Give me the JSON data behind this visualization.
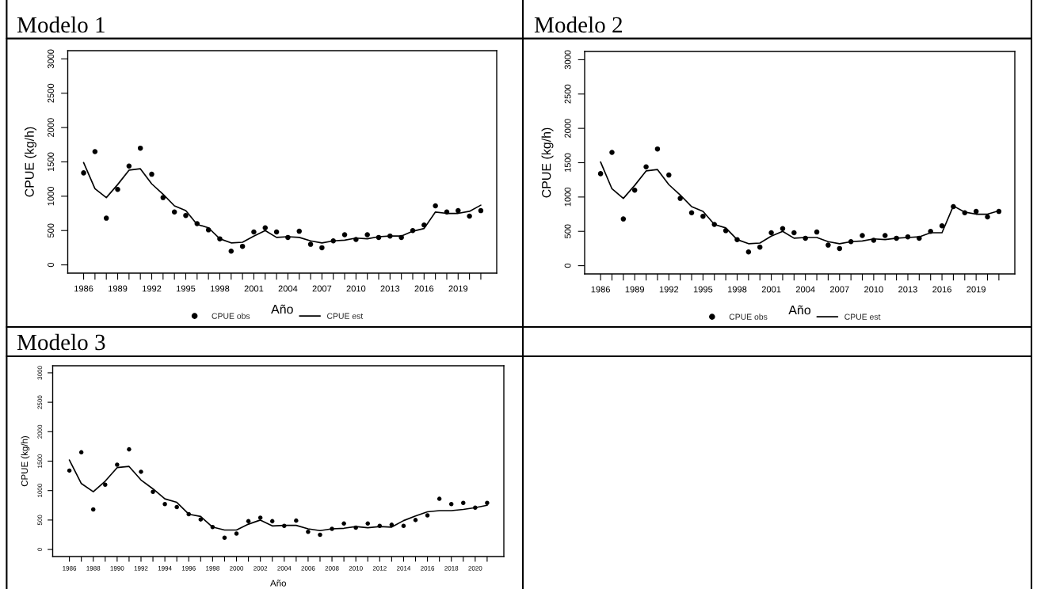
{
  "chart_data": [
    {
      "type": "line",
      "title": "Modelo 1",
      "xlabel": "Año",
      "ylabel": "CPUE (kg/h)",
      "legend": "bottom",
      "x": [
        1986,
        1987,
        1988,
        1989,
        1990,
        1991,
        1992,
        1993,
        1994,
        1995,
        1996,
        1997,
        1998,
        1999,
        2000,
        2001,
        2002,
        2003,
        2004,
        2005,
        2006,
        2007,
        2008,
        2009,
        2010,
        2011,
        2012,
        2013,
        2014,
        2015,
        2016,
        2017,
        2018,
        2019,
        2020,
        2021
      ],
      "xlim": [
        1984.6,
        2022.4
      ],
      "ylim": [
        -120,
        3120
      ],
      "yticks": [
        0,
        500,
        1000,
        1500,
        2000,
        2500,
        3000
      ],
      "xticks": [
        1986,
        {
          "value": 1987,
          "label": null
        },
        {
          "value": 1988,
          "label": null
        },
        1989,
        {
          "value": 1990,
          "label": null
        },
        {
          "value": 1991,
          "label": null
        },
        1992,
        {
          "value": 1993,
          "label": null
        },
        {
          "value": 1994,
          "label": null
        },
        1995,
        {
          "value": 1996,
          "label": null
        },
        {
          "value": 1997,
          "label": null
        },
        1998,
        {
          "value": 1999,
          "label": null
        },
        {
          "value": 2000,
          "label": null
        },
        2001,
        {
          "value": 2002,
          "label": null
        },
        {
          "value": 2003,
          "label": null
        },
        2004,
        {
          "value": 2005,
          "label": null
        },
        {
          "value": 2006,
          "label": null
        },
        2007,
        {
          "value": 2008,
          "label": null
        },
        {
          "value": 2009,
          "label": null
        },
        2010,
        {
          "value": 2011,
          "label": null
        },
        {
          "value": 2012,
          "label": null
        },
        2013,
        {
          "value": 2014,
          "label": null
        },
        {
          "value": 2015,
          "label": null
        },
        2016,
        {
          "value": 2017,
          "label": null
        },
        {
          "value": 2018,
          "label": null
        },
        2019,
        {
          "value": 2020,
          "label": null
        },
        {
          "value": 2021,
          "label": null
        }
      ],
      "series": [
        {
          "name": "CPUE obs",
          "type": "scatter",
          "marker": "circle",
          "color": "#000000",
          "values": [
            1340,
            1650,
            680,
            1100,
            1440,
            1700,
            1320,
            980,
            770,
            720,
            600,
            510,
            380,
            200,
            270,
            480,
            540,
            480,
            400,
            490,
            300,
            250,
            350,
            440,
            370,
            440,
            400,
            420,
            400,
            500,
            580,
            860,
            770,
            790,
            710,
            790
          ]
        },
        {
          "name": "CPUE est",
          "line_style": "solid",
          "color": "#000000",
          "values": [
            1490,
            1110,
            980,
            1170,
            1380,
            1400,
            1180,
            1030,
            860,
            790,
            590,
            540,
            380,
            320,
            330,
            420,
            500,
            400,
            410,
            400,
            350,
            320,
            350,
            360,
            390,
            380,
            410,
            420,
            420,
            490,
            530,
            770,
            750,
            750,
            780,
            870
          ]
        }
      ]
    },
    {
      "type": "line",
      "title": "Modelo 2",
      "xlabel": "Año",
      "ylabel": "CPUE (kg/h)",
      "legend": "bottom",
      "x": [
        1986,
        1987,
        1988,
        1989,
        1990,
        1991,
        1992,
        1993,
        1994,
        1995,
        1996,
        1997,
        1998,
        1999,
        2000,
        2001,
        2002,
        2003,
        2004,
        2005,
        2006,
        2007,
        2008,
        2009,
        2010,
        2011,
        2012,
        2013,
        2014,
        2015,
        2016,
        2017,
        2018,
        2019,
        2020,
        2021
      ],
      "xlim": [
        1984.6,
        2022.4
      ],
      "ylim": [
        -120,
        3120
      ],
      "yticks": [
        0,
        500,
        1000,
        1500,
        2000,
        2500,
        3000
      ],
      "xticks": [
        1986,
        {
          "value": 1987,
          "label": null
        },
        {
          "value": 1988,
          "label": null
        },
        1989,
        {
          "value": 1990,
          "label": null
        },
        {
          "value": 1991,
          "label": null
        },
        1992,
        {
          "value": 1993,
          "label": null
        },
        {
          "value": 1994,
          "label": null
        },
        1995,
        {
          "value": 1996,
          "label": null
        },
        {
          "value": 1997,
          "label": null
        },
        1998,
        {
          "value": 1999,
          "label": null
        },
        {
          "value": 2000,
          "label": null
        },
        2001,
        {
          "value": 2002,
          "label": null
        },
        {
          "value": 2003,
          "label": null
        },
        2004,
        {
          "value": 2005,
          "label": null
        },
        {
          "value": 2006,
          "label": null
        },
        2007,
        {
          "value": 2008,
          "label": null
        },
        {
          "value": 2009,
          "label": null
        },
        2010,
        {
          "value": 2011,
          "label": null
        },
        {
          "value": 2012,
          "label": null
        },
        2013,
        {
          "value": 2014,
          "label": null
        },
        {
          "value": 2015,
          "label": null
        },
        2016,
        {
          "value": 2017,
          "label": null
        },
        {
          "value": 2018,
          "label": null
        },
        2019,
        {
          "value": 2020,
          "label": null
        },
        {
          "value": 2021,
          "label": null
        }
      ],
      "series": [
        {
          "name": "CPUE obs",
          "type": "scatter",
          "marker": "circle",
          "color": "#000000",
          "values": [
            1340,
            1650,
            680,
            1100,
            1440,
            1700,
            1320,
            980,
            770,
            720,
            600,
            510,
            380,
            200,
            270,
            480,
            540,
            480,
            400,
            490,
            300,
            250,
            350,
            440,
            370,
            440,
            400,
            420,
            400,
            500,
            580,
            860,
            770,
            790,
            710,
            790
          ]
        },
        {
          "name": "CPUE est",
          "line_style": "solid",
          "color": "#000000",
          "values": [
            1510,
            1120,
            980,
            1170,
            1380,
            1400,
            1180,
            1030,
            860,
            790,
            600,
            550,
            380,
            320,
            330,
            430,
            500,
            400,
            410,
            410,
            350,
            320,
            350,
            360,
            390,
            380,
            400,
            410,
            420,
            480,
            480,
            870,
            780,
            750,
            750,
            800
          ]
        }
      ]
    },
    {
      "type": "line",
      "title": "Modelo 3",
      "xlabel": "Año",
      "ylabel": "CPUE (kg/h)",
      "x": [
        1986,
        1987,
        1988,
        1989,
        1990,
        1991,
        1992,
        1993,
        1994,
        1995,
        1996,
        1997,
        1998,
        1999,
        2000,
        2001,
        2002,
        2003,
        2004,
        2005,
        2006,
        2007,
        2008,
        2009,
        2010,
        2011,
        2012,
        2013,
        2014,
        2015,
        2016,
        2017,
        2018,
        2019,
        2020,
        2021
      ],
      "xlim": [
        1984.6,
        2022.4
      ],
      "ylim": [
        -120,
        3120
      ],
      "yticks": [
        0,
        500,
        1000,
        1500,
        2000,
        2500,
        3000
      ],
      "xticks": [
        1986,
        {
          "value": 1987,
          "label": null
        },
        1988,
        {
          "value": 1989,
          "label": null
        },
        1990,
        {
          "value": 1991,
          "label": null
        },
        1992,
        {
          "value": 1993,
          "label": null
        },
        1994,
        {
          "value": 1995,
          "label": null
        },
        1996,
        {
          "value": 1997,
          "label": null
        },
        1998,
        {
          "value": 1999,
          "label": null
        },
        2000,
        {
          "value": 2001,
          "label": null
        },
        2002,
        {
          "value": 2003,
          "label": null
        },
        2004,
        {
          "value": 2005,
          "label": null
        },
        2006,
        {
          "value": 2007,
          "label": null
        },
        2008,
        {
          "value": 2009,
          "label": null
        },
        2010,
        {
          "value": 2011,
          "label": null
        },
        2012,
        {
          "value": 2013,
          "label": null
        },
        2014,
        {
          "value": 2015,
          "label": null
        },
        2016,
        {
          "value": 2017,
          "label": null
        },
        2018,
        {
          "value": 2019,
          "label": null
        },
        2020,
        {
          "value": 2021,
          "label": null
        }
      ],
      "series": [
        {
          "type": "scatter",
          "marker": "circle",
          "color": "#000000",
          "values": [
            1340,
            1650,
            680,
            1100,
            1440,
            1700,
            1320,
            980,
            770,
            720,
            600,
            510,
            380,
            200,
            270,
            480,
            540,
            480,
            400,
            490,
            300,
            250,
            350,
            440,
            370,
            440,
            400,
            420,
            400,
            500,
            580,
            860,
            770,
            790,
            710,
            790
          ]
        },
        {
          "line_style": "solid",
          "color": "#000000",
          "values": [
            1520,
            1120,
            980,
            1160,
            1390,
            1410,
            1180,
            1030,
            860,
            800,
            600,
            560,
            380,
            330,
            330,
            430,
            500,
            400,
            410,
            410,
            350,
            320,
            350,
            360,
            390,
            370,
            390,
            380,
            490,
            570,
            640,
            660,
            660,
            680,
            710,
            750
          ]
        }
      ]
    }
  ]
}
